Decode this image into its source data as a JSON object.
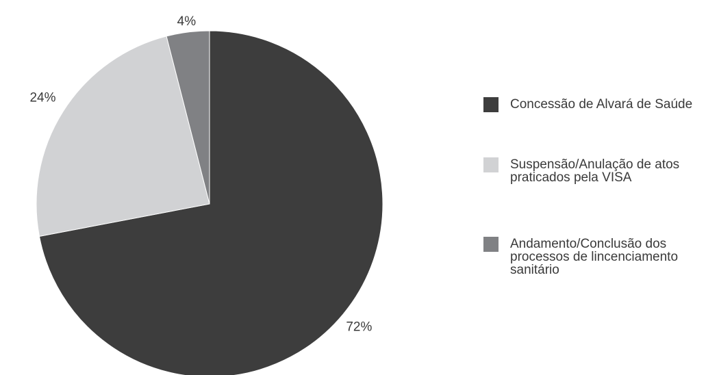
{
  "chart_data": {
    "type": "pie",
    "start_angle_deg": 0,
    "direction": "clockwise",
    "slices": [
      {
        "label": "Concessão de Alvará de Saúde",
        "value": 72,
        "value_label": "72%",
        "color": "#3d3d3d"
      },
      {
        "label": "Suspensão/Anulação de atos praticados pela VISA",
        "value": 24,
        "value_label": "24%",
        "color": "#d1d2d4"
      },
      {
        "label": "Andamento/Conclusão dos processos de lincenciamento sanitário",
        "value": 4,
        "value_label": "4%",
        "color": "#808184"
      }
    ],
    "legend_position": "right"
  }
}
